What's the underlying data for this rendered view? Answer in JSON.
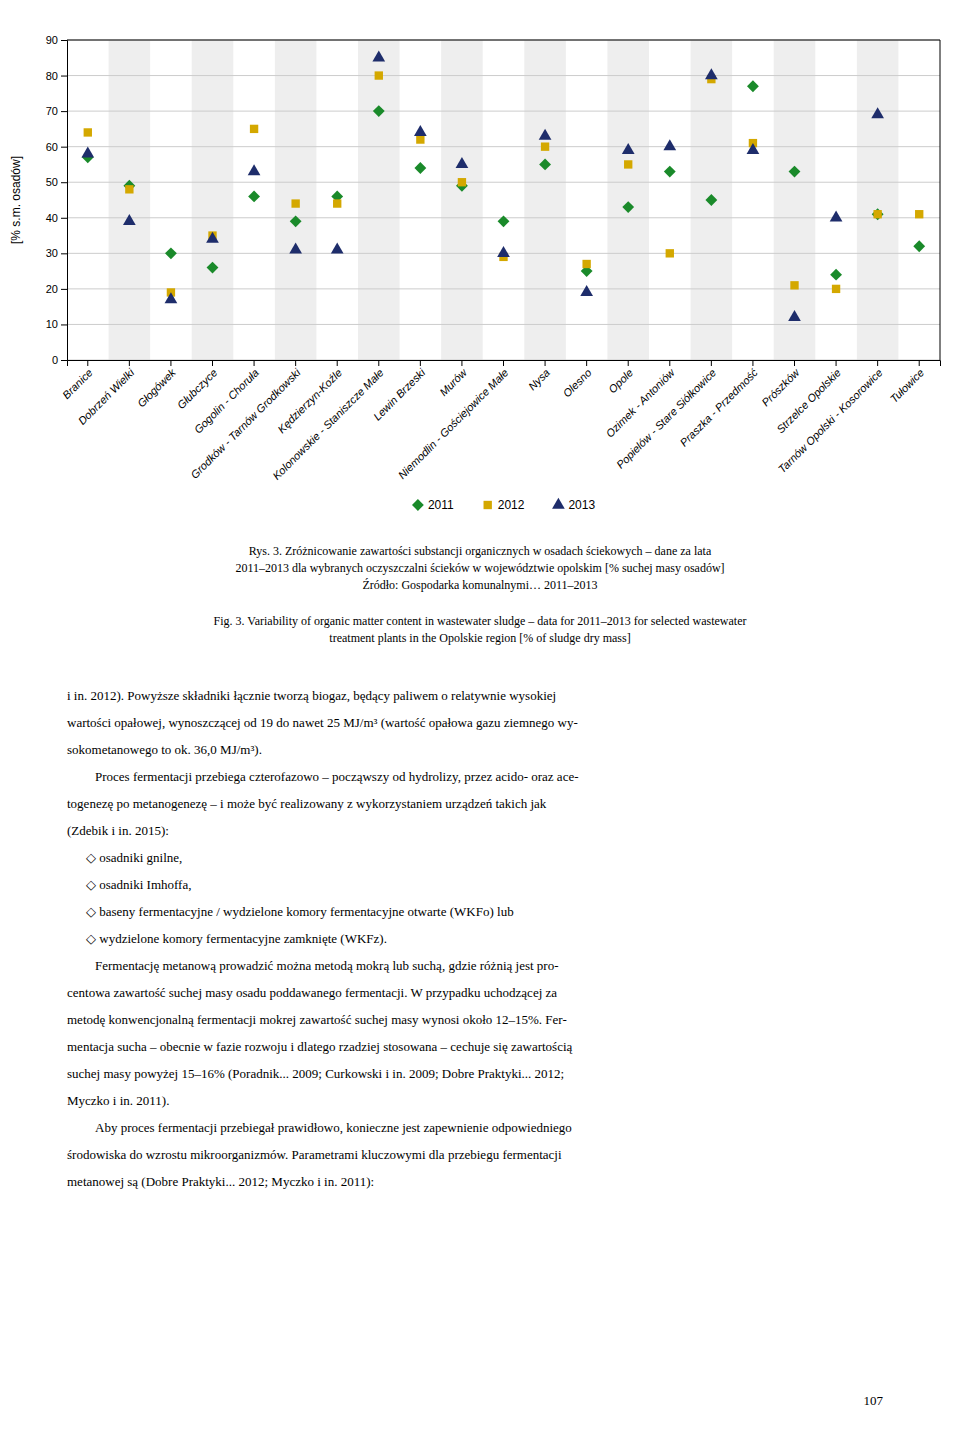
{
  "chart_data": {
    "type": "scatter",
    "categories": [
      "Branice",
      "Dobrzeń Wielki",
      "Głogówek",
      "Głubczyce",
      "Gogolin - Chorułа",
      "Grodków - Tarnów Grodkowski",
      "Kędzierzyn-Koźle",
      "Kolonowskie - Staniszcze Małe",
      "Lewin Brzeski",
      "Murów",
      "Niemodlin - Gościejowice Małe",
      "Nysa",
      "Olesno",
      "Opole",
      "Ozimek - Antoniów",
      "Popielów - Stare Siółkowice",
      "Praszka - Przedmość",
      "Prószków",
      "Strzelce Opolskie",
      "Tarnów Opolski - Kosorowice",
      "Tułowice"
    ],
    "series": [
      {
        "name": "2011",
        "color": "#1a8a2a",
        "marker": "diamond",
        "values": [
          57,
          49,
          30,
          26,
          46,
          39,
          46,
          70,
          54,
          49,
          39,
          55,
          25,
          43,
          53,
          45,
          77,
          53,
          24,
          41,
          32
        ]
      },
      {
        "name": "2012",
        "color": "#d4a800",
        "marker": "square",
        "values": [
          64,
          48,
          19,
          35,
          65,
          44,
          44,
          80,
          62,
          50,
          29,
          60,
          27,
          55,
          30,
          79,
          61,
          21,
          20,
          41,
          41
        ]
      },
      {
        "name": "2013",
        "color": "#1e2d6b",
        "marker": "triangle",
        "values": [
          58,
          39,
          17,
          34,
          53,
          31,
          31,
          85,
          64,
          55,
          30,
          63,
          19,
          59,
          60,
          80,
          59,
          12,
          40,
          69,
          null
        ]
      }
    ],
    "ylabel": "[% s.m. osadów]",
    "ylim": [
      0,
      90
    ],
    "yticks": [
      0,
      10,
      20,
      30,
      40,
      50,
      60,
      70,
      80,
      90
    ],
    "grid": true,
    "legend": "bottom"
  },
  "caption_rys": [
    "Rys. 3. Zróżnicowanie zawartości substancji organicznych w osadach ściekowych – dane za lata",
    "2011–2013 dla wybranych oczyszczalni ścieków w województwie opolskim [% suchej masy osadów]",
    "Źródło: Gospodarka komunalnymi… 2011–2013"
  ],
  "caption_fig": [
    "Fig. 3. Variability of organic matter content in wastewater sludge – data for 2011–2013 for selected wastewater",
    "treatment plants in the Opolskie region [% of sludge dry mass]"
  ],
  "body": [
    {
      "paragraph": [
        "i in. 2012). Powyższe składniki łącznie tworzą biogaz, będący paliwem o relatywnie wysokiej",
        "wartości opałowej, wynoszczącej od 19 do nawet 25 MJ/m³ (wartość opałowa gazu ziemnego wy-",
        "sokometanowego to ok. 36,0 MJ/m³)."
      ]
    },
    {
      "paragraph": [
        "Proces fermentacji przebiega czterofazowo – począwszy od hydrolizy, przez acido- oraz ace-",
        "togenezę po metanogenezę – i może być realizowany z wykorzystaniem urządzeń takich jak",
        "(Zdebik i in. 2015):"
      ]
    },
    {
      "list": [
        "◇ osadniki gnilne,",
        "◇ osadniki Imhoffa,",
        "◇ baseny fermentacyjne / wydzielone komory fermentacyjne otwarte (WKFo) lub",
        "◇ wydzielone komory fermentacyjne zamknięte (WKFz)."
      ]
    },
    {
      "paragraph": [
        "Fermentację metanową prowadzić można metodą mokrą lub suchą, gdzie różnią jest pro-",
        "centowa zawartość suchej masy osadu poddawanego fermentacji. W przypadku uchodzącej za",
        "metodę konwencjonalną fermentacji mokrej zawartość suchej masy wynosi około 12–15%. Fer-",
        "mentacja sucha – obecnie w fazie rozwoju i dlatego rzadziej stosowana – cechuje się zawartością",
        "suchej masy powyżej 15–16% (Poradnik... 2009; Curkowski i in. 2009; Dobre Praktyki... 2012;",
        "Myczko i in. 2011)."
      ]
    },
    {
      "paragraph": [
        "Aby proces fermentacji przebiegał prawidłowo, konieczne jest zapewnienie odpowiedniego",
        "środowiska do wzrostu mikroorganizmów. Parametrami kluczowymi dla przebiegu fermentacji",
        "metanowej są (Dobre Praktyki... 2012; Myczko i in. 2011):"
      ]
    }
  ],
  "page_number": "107"
}
